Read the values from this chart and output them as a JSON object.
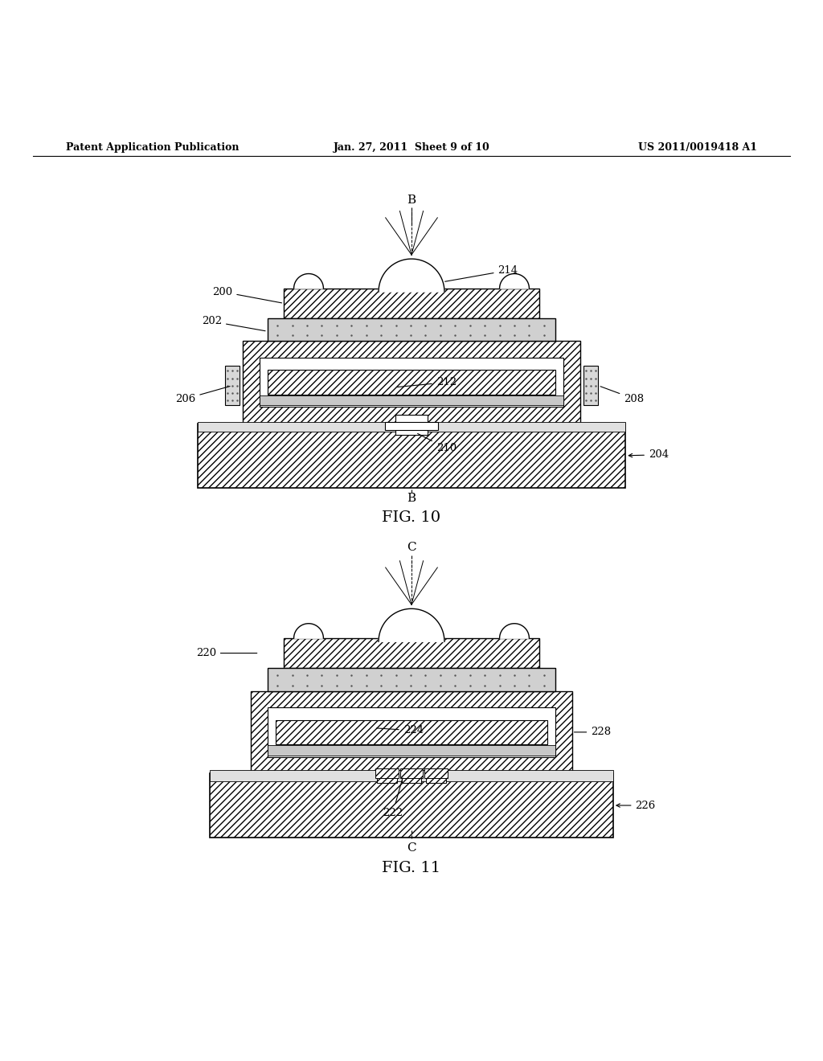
{
  "bg_color": "#ffffff",
  "line_color": "#000000",
  "header": {
    "left": "Patent Application Publication",
    "center": "Jan. 27, 2011  Sheet 9 of 10",
    "right": "US 2011/0019418 A1"
  }
}
